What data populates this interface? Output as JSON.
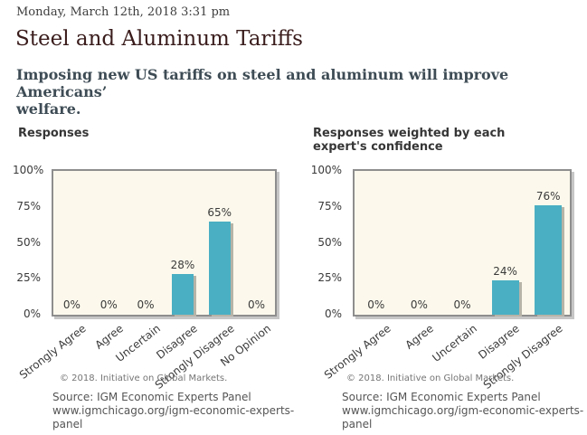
{
  "page": {
    "date": "Monday, March 12th, 2018 3:31 pm",
    "title": "Steel and Aluminum Tariffs",
    "question_lines": [
      "Imposing new US tariffs on steel and aluminum will improve Americans’",
      "welfare."
    ]
  },
  "colors": {
    "bar": "#4aafc3",
    "plot_bg": "#fcf9ec",
    "plot_border": "#8e8e8e",
    "title_text": "#3a1c1c",
    "question_text": "#3e4c55"
  },
  "chart_data": [
    {
      "type": "bar",
      "title": "Responses",
      "categories": [
        "Strongly Agree",
        "Agree",
        "Uncertain",
        "Disagree",
        "Strongly Disagree",
        "No Opinion"
      ],
      "values": [
        0,
        0,
        0,
        28,
        65,
        0
      ],
      "value_labels": [
        "0%",
        "0%",
        "0%",
        "28%",
        "65%",
        "0%"
      ],
      "ylim": [
        0,
        100
      ],
      "yticks": [
        "100%",
        "75%",
        "50%",
        "25%",
        "0%"
      ],
      "grid": false,
      "copyright": "© 2018. Initiative on Global Markets.",
      "source_label": "Source: IGM Economic Experts Panel",
      "source_url_line1": "www.igmchicago.org/igm-economic-experts-",
      "source_url_line2": "panel"
    },
    {
      "type": "bar",
      "title": "Responses weighted by each expert's confidence",
      "categories": [
        "Strongly Agree",
        "Agree",
        "Uncertain",
        "Disagree",
        "Strongly Disagree"
      ],
      "values": [
        0,
        0,
        0,
        24,
        76
      ],
      "value_labels": [
        "0%",
        "0%",
        "0%",
        "24%",
        "76%"
      ],
      "ylim": [
        0,
        100
      ],
      "yticks": [
        "100%",
        "75%",
        "50%",
        "25%",
        "0%"
      ],
      "grid": false,
      "copyright": "© 2018. Initiative on Global Markets.",
      "source_label": "Source: IGM Economic Experts Panel",
      "source_url_line1": "www.igmchicago.org/igm-economic-experts-",
      "source_url_line2": "panel"
    }
  ]
}
